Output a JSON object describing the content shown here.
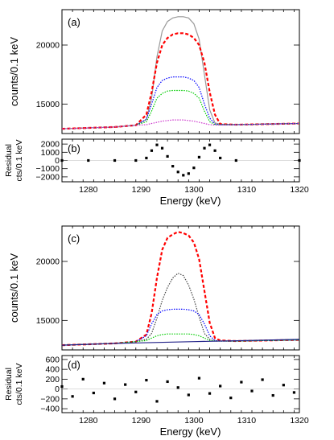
{
  "chart_data": [
    {
      "panel": "(a)",
      "type": "line",
      "ylabel": "counts/0.1 keV",
      "xlim": [
        1275,
        1320
      ],
      "ylim": [
        12500,
        23000
      ],
      "yticks": [
        15000,
        20000
      ],
      "ytick_labels": [
        "15000",
        "20000"
      ],
      "series": [
        {
          "color": "#999999",
          "style": "solid",
          "x": [
            1275,
            1285,
            1289,
            1291,
            1292,
            1293,
            1294,
            1295,
            1296,
            1297,
            1298,
            1299,
            1300,
            1301,
            1302,
            1303,
            1304,
            1305,
            1308,
            1320
          ],
          "y": [
            12900,
            13050,
            13200,
            13700,
            15500,
            19000,
            21200,
            22000,
            22300,
            22400,
            22400,
            22300,
            21800,
            20500,
            17500,
            14500,
            13400,
            13300,
            13250,
            13350
          ]
        },
        {
          "color": "#ff0000",
          "style": "dashed",
          "x": [
            1275,
            1285,
            1289,
            1291,
            1292,
            1293,
            1294,
            1295,
            1296,
            1297,
            1298,
            1299,
            1300,
            1301,
            1302,
            1303,
            1304,
            1305,
            1308,
            1320
          ],
          "y": [
            12900,
            13050,
            13200,
            14100,
            16000,
            18500,
            20000,
            20600,
            20900,
            21000,
            21000,
            20900,
            20600,
            20000,
            18500,
            16000,
            14100,
            13300,
            13250,
            13350
          ]
        },
        {
          "color": "#0000ff",
          "style": "dotted",
          "x": [
            1275,
            1285,
            1289,
            1291,
            1292,
            1293,
            1294,
            1295,
            1296,
            1297,
            1298,
            1299,
            1300,
            1301,
            1302,
            1303,
            1304,
            1305,
            1308,
            1320
          ],
          "y": [
            12900,
            13050,
            13200,
            13700,
            15000,
            16400,
            17000,
            17200,
            17300,
            17300,
            17300,
            17200,
            17000,
            16400,
            15000,
            13800,
            13300,
            13250,
            13250,
            13350
          ]
        },
        {
          "color": "#00cc00",
          "style": "dotted",
          "x": [
            1275,
            1285,
            1289,
            1291,
            1292,
            1293,
            1294,
            1295,
            1296,
            1297,
            1298,
            1299,
            1300,
            1301,
            1302,
            1303,
            1304,
            1305,
            1308,
            1320
          ],
          "y": [
            12900,
            13050,
            13200,
            13500,
            14400,
            15500,
            15900,
            16100,
            16150,
            16150,
            16150,
            16100,
            15900,
            15500,
            14400,
            13500,
            13250,
            13250,
            13250,
            13350
          ]
        },
        {
          "color": "#cc33cc",
          "style": "dotted",
          "x": [
            1275,
            1285,
            1289,
            1291,
            1292,
            1293,
            1294,
            1295,
            1296,
            1297,
            1298,
            1299,
            1300,
            1301,
            1302,
            1303,
            1304,
            1305,
            1308,
            1320
          ],
          "y": [
            12900,
            13050,
            13200,
            13250,
            13350,
            13450,
            13550,
            13600,
            13650,
            13650,
            13650,
            13600,
            13550,
            13450,
            13350,
            13250,
            13220,
            13220,
            13250,
            13350
          ]
        }
      ]
    },
    {
      "panel": "(b)",
      "type": "scatter",
      "ylabel": "Residual cts/0.1 keV",
      "xlabel": "Energy (keV)",
      "xlim": [
        1275,
        1320
      ],
      "ylim": [
        -2600,
        2600
      ],
      "xticks": [
        1280,
        1290,
        1300,
        1310,
        1320
      ],
      "yticks": [
        -2000,
        -1000,
        0,
        1000,
        2000
      ],
      "ytick_labels": [
        "−2000",
        "−1000",
        "0",
        "1000",
        "2000"
      ],
      "series": [
        {
          "color": "#000000",
          "x": [
            1275,
            1280,
            1285,
            1289,
            1291,
            1292,
            1293,
            1294,
            1295,
            1296,
            1297,
            1298,
            1299,
            1300,
            1301,
            1302,
            1303,
            1304,
            1305,
            1308,
            1320
          ],
          "y": [
            0,
            0,
            0,
            0,
            300,
            1200,
            1900,
            1500,
            500,
            -700,
            -1400,
            -1800,
            -1600,
            -900,
            400,
            1500,
            1900,
            1200,
            300,
            0,
            0
          ]
        }
      ]
    },
    {
      "panel": "(c)",
      "type": "line",
      "ylabel": "counts/0.1 keV",
      "xlim": [
        1275,
        1320
      ],
      "ylim": [
        12500,
        23000
      ],
      "yticks": [
        15000,
        20000
      ],
      "ytick_labels": [
        "15000",
        "20000"
      ],
      "series": [
        {
          "color": "#ff0000",
          "style": "dashed",
          "x": [
            1275,
            1285,
            1289,
            1291,
            1292,
            1293,
            1294,
            1295,
            1296,
            1297,
            1298,
            1299,
            1300,
            1301,
            1302,
            1303,
            1304,
            1305,
            1308,
            1320
          ],
          "y": [
            12900,
            13050,
            13200,
            13800,
            15600,
            18600,
            21000,
            22000,
            22300,
            22500,
            22400,
            22200,
            21600,
            20200,
            17500,
            14800,
            13500,
            13300,
            13250,
            13350
          ]
        },
        {
          "color": "#444444",
          "style": "dotted",
          "x": [
            1275,
            1285,
            1289,
            1291,
            1292,
            1293,
            1294,
            1295,
            1296,
            1297,
            1298,
            1299,
            1300,
            1301,
            1302,
            1303,
            1304,
            1305,
            1308,
            1320
          ],
          "y": [
            12900,
            13050,
            13200,
            13400,
            13900,
            15200,
            16700,
            17800,
            18600,
            19000,
            18800,
            18000,
            16800,
            15300,
            13900,
            13400,
            13250,
            13250,
            13250,
            13350
          ]
        },
        {
          "color": "#0000ff",
          "style": "dotted",
          "x": [
            1275,
            1285,
            1289,
            1291,
            1292,
            1293,
            1294,
            1295,
            1296,
            1297,
            1298,
            1299,
            1300,
            1301,
            1302,
            1303,
            1304,
            1305,
            1308,
            1320
          ],
          "y": [
            12900,
            13050,
            13200,
            13700,
            14700,
            15500,
            15800,
            15900,
            15950,
            15950,
            15950,
            15900,
            15800,
            15500,
            14700,
            13700,
            13300,
            13250,
            13250,
            13350
          ]
        },
        {
          "color": "#00cc00",
          "style": "dotted",
          "x": [
            1275,
            1285,
            1289,
            1291,
            1292,
            1293,
            1294,
            1295,
            1296,
            1297,
            1298,
            1299,
            1300,
            1301,
            1302,
            1303,
            1304,
            1305,
            1308,
            1320
          ],
          "y": [
            12900,
            13050,
            13200,
            13300,
            13500,
            13700,
            13800,
            13850,
            13850,
            13850,
            13850,
            13850,
            13800,
            13700,
            13500,
            13300,
            13250,
            13250,
            13250,
            13350
          ]
        },
        {
          "color": "#222288",
          "style": "solid",
          "x": [
            1275,
            1285,
            1290,
            1300,
            1310,
            1320
          ],
          "y": [
            12900,
            13050,
            13100,
            13200,
            13300,
            13400
          ]
        }
      ]
    },
    {
      "panel": "(d)",
      "type": "scatter",
      "ylabel": "Residual cts/0.1 keV",
      "xlabel": "Energy (keV)",
      "xlim": [
        1275,
        1320
      ],
      "ylim": [
        -480,
        680
      ],
      "xticks": [
        1280,
        1290,
        1300,
        1310,
        1320
      ],
      "yticks": [
        -400,
        -200,
        0,
        200,
        400,
        600
      ],
      "ytick_labels": [
        "−400",
        "−200",
        "0",
        "200",
        "400",
        "600"
      ],
      "series": [
        {
          "color": "#000000",
          "x": [
            1275,
            1277,
            1279,
            1281,
            1283,
            1285,
            1287,
            1289,
            1291,
            1293,
            1295,
            1297,
            1299,
            1301,
            1303,
            1305,
            1307,
            1309,
            1311,
            1313,
            1315,
            1317,
            1319
          ],
          "y": [
            50,
            -150,
            200,
            -80,
            120,
            -200,
            90,
            -60,
            180,
            -250,
            150,
            30,
            -120,
            220,
            -90,
            60,
            -180,
            140,
            -40,
            190,
            -130,
            80,
            -70
          ]
        }
      ]
    }
  ]
}
